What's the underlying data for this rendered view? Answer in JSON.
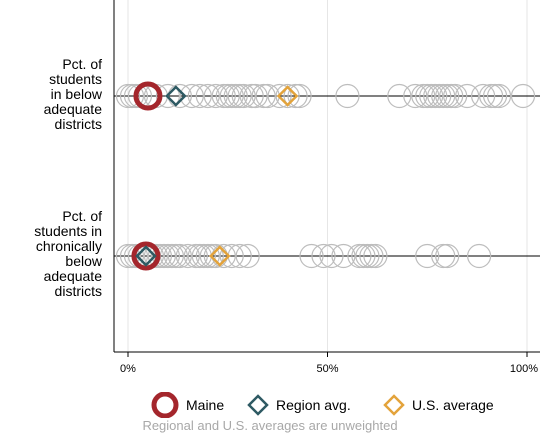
{
  "chart_data": {
    "type": "scatter",
    "xlim": [
      0,
      100
    ],
    "x_tick_labels": [
      "0%",
      "50%",
      "100%"
    ],
    "x_ticks": [
      0,
      50,
      100
    ],
    "grid": true,
    "rows": [
      {
        "label_lines": [
          "Pct. of",
          "students",
          "in below",
          "adequate",
          "districts"
        ],
        "states": [
          0,
          1,
          2,
          3,
          5,
          7,
          10,
          13,
          16,
          18,
          20,
          22,
          24,
          25,
          26,
          27,
          28,
          29,
          31,
          32,
          34,
          35,
          38,
          40,
          42,
          43,
          55,
          68,
          72,
          74,
          75,
          76,
          77,
          78,
          79,
          80,
          81,
          82,
          85,
          89,
          91,
          92,
          93,
          99
        ],
        "maine": 5,
        "region_avg": 12,
        "us_average": 40
      },
      {
        "label_lines": [
          "Pct. of",
          "students in",
          "chronically",
          "below",
          "adequate",
          "districts"
        ],
        "states": [
          0,
          1,
          2,
          3,
          4,
          5,
          6,
          7,
          8,
          9,
          10,
          11,
          12,
          13,
          15,
          17,
          18,
          19,
          20,
          21,
          22,
          24,
          26,
          28,
          30,
          46,
          49,
          51,
          54,
          58,
          59,
          60,
          61,
          62,
          75,
          79,
          80,
          88
        ],
        "maine": 4.5,
        "region_avg": 4.5,
        "us_average": 23
      }
    ],
    "legend": [
      {
        "name": "Maine",
        "shape": "circle",
        "color": "#a4262c"
      },
      {
        "name": "Region avg.",
        "shape": "diamond",
        "color": "#2e5a63"
      },
      {
        "name": "U.S. average",
        "shape": "diamond",
        "color": "#e3a33b"
      }
    ],
    "legend_placement": "bottom",
    "note": "Regional and U.S. averages are unweighted",
    "colors": {
      "state_marker": "#bdbdbd",
      "grid": "#e6e6e6",
      "axis": "#000000"
    }
  }
}
